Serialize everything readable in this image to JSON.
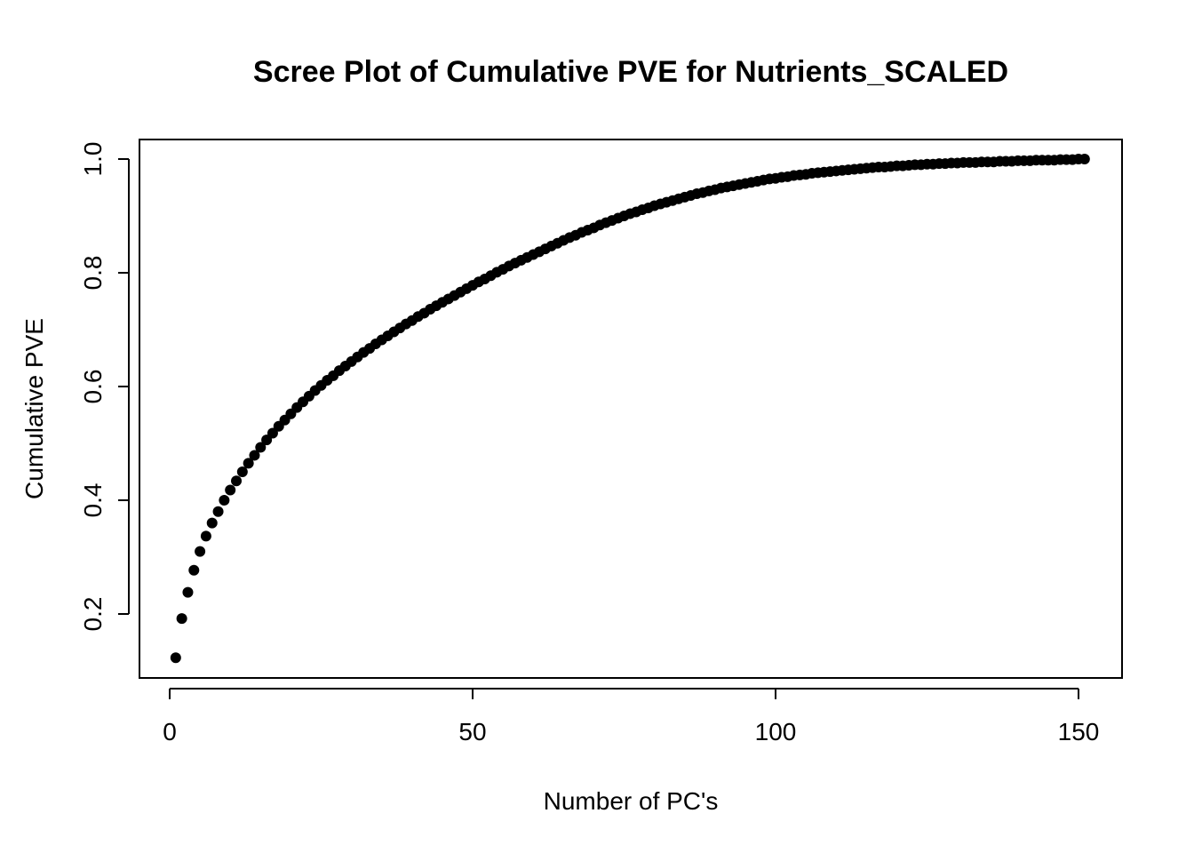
{
  "chart_data": {
    "type": "scatter",
    "title": "Scree Plot of Cumulative PVE for Nutrients_SCALED",
    "xlabel": "Number of PC's",
    "ylabel": "Cumulative PVE",
    "xlim": [
      0,
      155
    ],
    "ylim": [
      0.12,
      1.0
    ],
    "x_ticks": [
      0,
      50,
      100,
      150
    ],
    "x_tick_labels": [
      "0",
      "50",
      "100",
      "150"
    ],
    "y_ticks": [
      0.2,
      0.4,
      0.6,
      0.8,
      1.0
    ],
    "y_tick_labels": [
      "0.2",
      "0.4",
      "0.6",
      "0.8",
      "1.0"
    ],
    "grid": false,
    "legend": "none",
    "point_color": "#000000",
    "series": [
      {
        "x": [
          1,
          2,
          3,
          4,
          5,
          6,
          7,
          8,
          9,
          10,
          11,
          12,
          13,
          14,
          15,
          16,
          17,
          18,
          19,
          20,
          21,
          22,
          23,
          24,
          25,
          26,
          27,
          28,
          29,
          30,
          31,
          32,
          33,
          34,
          35,
          36,
          37,
          38,
          39,
          40,
          41,
          42,
          43,
          44,
          45,
          46,
          47,
          48,
          49,
          50,
          51,
          52,
          53,
          54,
          55,
          56,
          57,
          58,
          59,
          60,
          61,
          62,
          63,
          64,
          65,
          66,
          67,
          68,
          69,
          70,
          71,
          72,
          73,
          74,
          75,
          76,
          77,
          78,
          79,
          80,
          81,
          82,
          83,
          84,
          85,
          86,
          87,
          88,
          89,
          90,
          91,
          92,
          93,
          94,
          95,
          96,
          97,
          98,
          99,
          100,
          101,
          102,
          103,
          104,
          105,
          106,
          107,
          108,
          109,
          110,
          111,
          112,
          113,
          114,
          115,
          116,
          117,
          118,
          119,
          120,
          121,
          122,
          123,
          124,
          125,
          126,
          127,
          128,
          129,
          130,
          131,
          132,
          133,
          134,
          135,
          136,
          137,
          138,
          139,
          140,
          141,
          142,
          143,
          144,
          145,
          146,
          147,
          148,
          149,
          150,
          151
        ],
        "y": [
          0.123,
          0.192,
          0.238,
          0.277,
          0.31,
          0.337,
          0.36,
          0.38,
          0.4,
          0.418,
          0.434,
          0.45,
          0.465,
          0.479,
          0.493,
          0.506,
          0.518,
          0.53,
          0.541,
          0.552,
          0.563,
          0.573,
          0.583,
          0.593,
          0.602,
          0.611,
          0.619,
          0.628,
          0.636,
          0.644,
          0.652,
          0.66,
          0.667,
          0.675,
          0.682,
          0.689,
          0.696,
          0.703,
          0.71,
          0.716,
          0.723,
          0.729,
          0.736,
          0.742,
          0.748,
          0.754,
          0.76,
          0.766,
          0.772,
          0.778,
          0.784,
          0.789,
          0.795,
          0.801,
          0.806,
          0.812,
          0.817,
          0.822,
          0.827,
          0.832,
          0.837,
          0.842,
          0.847,
          0.852,
          0.857,
          0.862,
          0.866,
          0.871,
          0.875,
          0.879,
          0.884,
          0.888,
          0.892,
          0.896,
          0.9,
          0.904,
          0.907,
          0.911,
          0.914,
          0.918,
          0.921,
          0.924,
          0.927,
          0.93,
          0.933,
          0.936,
          0.939,
          0.941,
          0.944,
          0.946,
          0.949,
          0.951,
          0.953,
          0.955,
          0.957,
          0.959,
          0.961,
          0.963,
          0.965,
          0.966,
          0.968,
          0.969,
          0.971,
          0.972,
          0.973,
          0.975,
          0.976,
          0.977,
          0.978,
          0.979,
          0.98,
          0.981,
          0.982,
          0.983,
          0.984,
          0.985,
          0.986,
          0.986,
          0.987,
          0.988,
          0.988,
          0.989,
          0.99,
          0.99,
          0.991,
          0.991,
          0.992,
          0.992,
          0.993,
          0.993,
          0.994,
          0.994,
          0.994,
          0.995,
          0.995,
          0.995,
          0.996,
          0.996,
          0.996,
          0.997,
          0.997,
          0.997,
          0.998,
          0.998,
          0.998,
          0.998,
          0.999,
          0.999,
          0.999,
          1.0,
          1.0
        ]
      }
    ]
  }
}
